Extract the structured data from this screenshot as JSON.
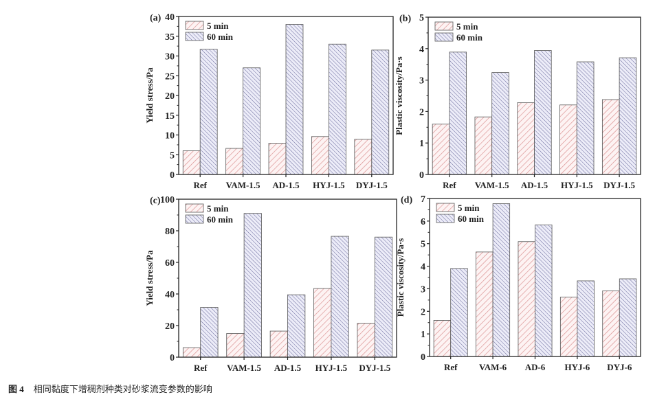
{
  "caption": {
    "figure_label": "图 4",
    "text": "相同黏度下增稠剂种类对砂浆流变参数的影响"
  },
  "colors": {
    "5 min": "#d98c8c",
    "60 min": "#6a6a9c",
    "5 min_bg": "#fdf3f3",
    "60 min_bg": "#ececf8"
  },
  "chart_data": [
    {
      "panel": "(a)",
      "type": "bar",
      "categories": [
        "Ref",
        "VAM-1.5",
        "AD-1.5",
        "HYJ-1.5",
        "DYJ-1.5"
      ],
      "ylabel": "Yield stress/Pa",
      "xlabel": "",
      "ylim": [
        0,
        40
      ],
      "yticks": [
        0,
        5,
        10,
        15,
        20,
        25,
        30,
        35,
        40
      ],
      "legend": "top-left",
      "series": [
        {
          "name": "5 min",
          "values": [
            6.0,
            6.6,
            7.9,
            9.6,
            8.9
          ]
        },
        {
          "name": "60 min",
          "values": [
            31.7,
            27.0,
            38.0,
            33.0,
            31.5
          ]
        }
      ]
    },
    {
      "panel": "(b)",
      "type": "bar",
      "categories": [
        "Ref",
        "VAM-1.5",
        "AD-1.5",
        "HYJ-1.5",
        "DYJ-1.5"
      ],
      "ylabel": "Plastic viscosity/Pa·s",
      "xlabel": "",
      "ylim": [
        0,
        5
      ],
      "yticks": [
        0,
        1,
        2,
        3,
        4,
        5
      ],
      "legend": "top-left",
      "series": [
        {
          "name": "5 min",
          "values": [
            1.6,
            1.83,
            2.28,
            2.21,
            2.38
          ]
        },
        {
          "name": "60 min",
          "values": [
            3.89,
            3.24,
            3.94,
            3.58,
            3.71
          ]
        }
      ]
    },
    {
      "panel": "(c)",
      "type": "bar",
      "categories": [
        "Ref",
        "VAM-1.5",
        "AD-1.5",
        "HYJ-1.5",
        "DYJ-1.5"
      ],
      "ylabel": "Yield stress/Pa",
      "xlabel": "",
      "ylim": [
        0,
        100
      ],
      "yticks": [
        0,
        20,
        40,
        60,
        80,
        100
      ],
      "legend": "top-left",
      "series": [
        {
          "name": "5 min",
          "values": [
            6.0,
            15.0,
            16.5,
            43.5,
            21.5
          ]
        },
        {
          "name": "60 min",
          "values": [
            31.5,
            91.0,
            39.5,
            76.5,
            76.0
          ]
        }
      ]
    },
    {
      "panel": "(d)",
      "type": "bar",
      "categories": [
        "Ref",
        "VAM-6",
        "AD-6",
        "HYJ-6",
        "DYJ-6"
      ],
      "ylabel": "Plastic viscosity/Pa·s",
      "xlabel": "",
      "ylim": [
        0,
        7
      ],
      "yticks": [
        0,
        1,
        2,
        3,
        4,
        5,
        6,
        7
      ],
      "legend": "top-left",
      "series": [
        {
          "name": "5 min",
          "values": [
            1.6,
            4.63,
            5.09,
            2.63,
            2.91
          ]
        },
        {
          "name": "60 min",
          "values": [
            3.9,
            6.77,
            5.83,
            3.35,
            3.44
          ]
        }
      ]
    }
  ]
}
